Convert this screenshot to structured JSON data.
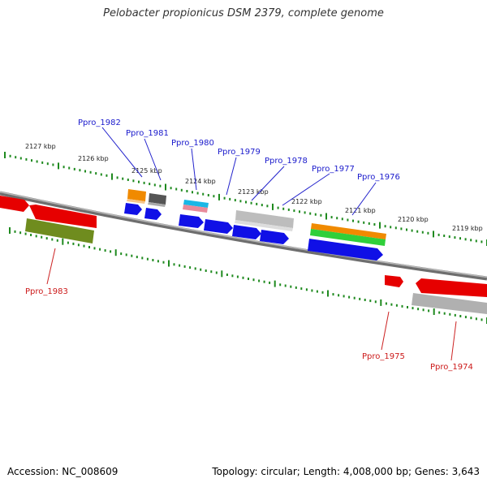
{
  "title": "Pelobacter propionicus DSM 2379, complete genome",
  "footer": {
    "accession": "Accession: NC_008609",
    "topology": "Topology: circular; Length: 4,008,000 bp; Genes: 3,643"
  },
  "colors": {
    "backbone": "#8a8a8a",
    "tick": "#1f8a1f",
    "top_label": "#1a1acc",
    "bottom_label": "#cc1a1a",
    "leader_top": "#2222cc",
    "leader_bottom": "#cc2222"
  },
  "kbp_labels": [
    "2127 kbp",
    "2126 kbp",
    "2125 kbp",
    "2124 kbp",
    "2123 kbp",
    "2122 kbp",
    "2121 kbp",
    "2120 kbp",
    "2119 kbp"
  ],
  "gene_labels_top": [
    "Ppro_1982",
    "Ppro_1981",
    "Ppro_1980",
    "Ppro_1979",
    "Ppro_1978",
    "Ppro_1977",
    "Ppro_1976"
  ],
  "gene_labels_bottom": [
    "Ppro_1983",
    "Ppro_1975",
    "Ppro_1974"
  ]
}
